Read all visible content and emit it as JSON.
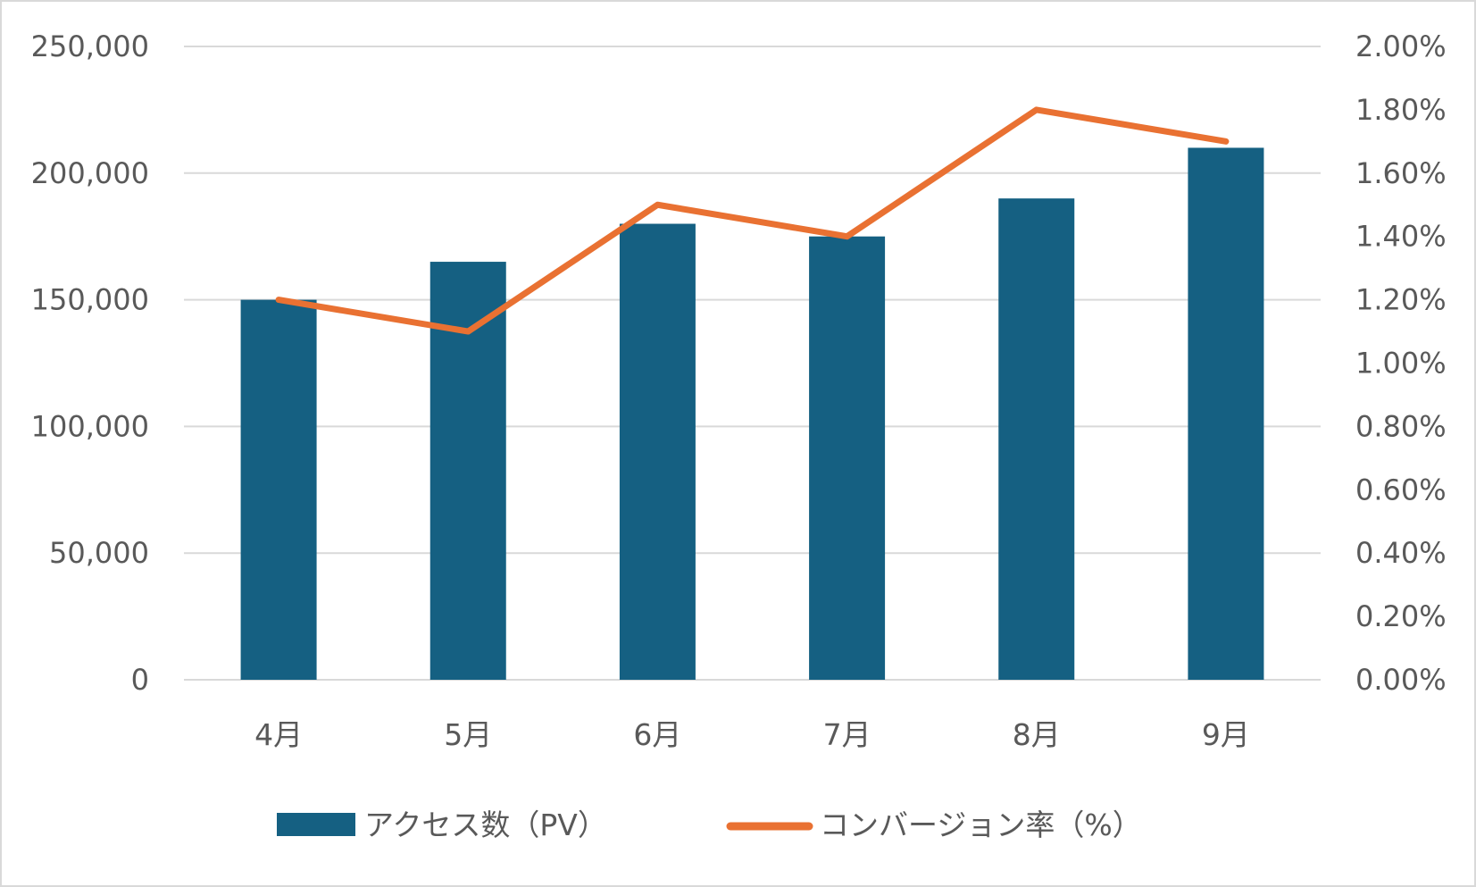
{
  "chart_data": {
    "type": "bar+line",
    "categories": [
      "4月",
      "5月",
      "6月",
      "7月",
      "8月",
      "9月"
    ],
    "series": [
      {
        "name": "アクセス数（PV）",
        "type": "bar",
        "axis": "left",
        "color": "#156082",
        "values": [
          150000,
          165000,
          180000,
          175000,
          190000,
          210000
        ]
      },
      {
        "name": "コンバージョン率（%）",
        "type": "line",
        "axis": "right",
        "color": "#E97132",
        "values": [
          1.2,
          1.1,
          1.5,
          1.4,
          1.8,
          1.7
        ]
      }
    ],
    "y_left": {
      "range": [
        0,
        250000
      ],
      "ticks": [
        0,
        50000,
        100000,
        150000,
        200000,
        250000
      ],
      "tick_labels": [
        "0",
        "50,000",
        "100,000",
        "150,000",
        "200,000",
        "250,000"
      ]
    },
    "y_right": {
      "range": [
        0,
        2.0
      ],
      "ticks": [
        0,
        0.2,
        0.4,
        0.6,
        0.8,
        1.0,
        1.2,
        1.4,
        1.6,
        1.8,
        2.0
      ],
      "tick_labels": [
        "0.00%",
        "0.20%",
        "0.40%",
        "0.60%",
        "0.80%",
        "1.00%",
        "1.20%",
        "1.40%",
        "1.60%",
        "1.80%",
        "2.00%"
      ]
    },
    "grid": true,
    "legend": "bottom",
    "title": "",
    "xlabel": "",
    "ylabel": ""
  }
}
